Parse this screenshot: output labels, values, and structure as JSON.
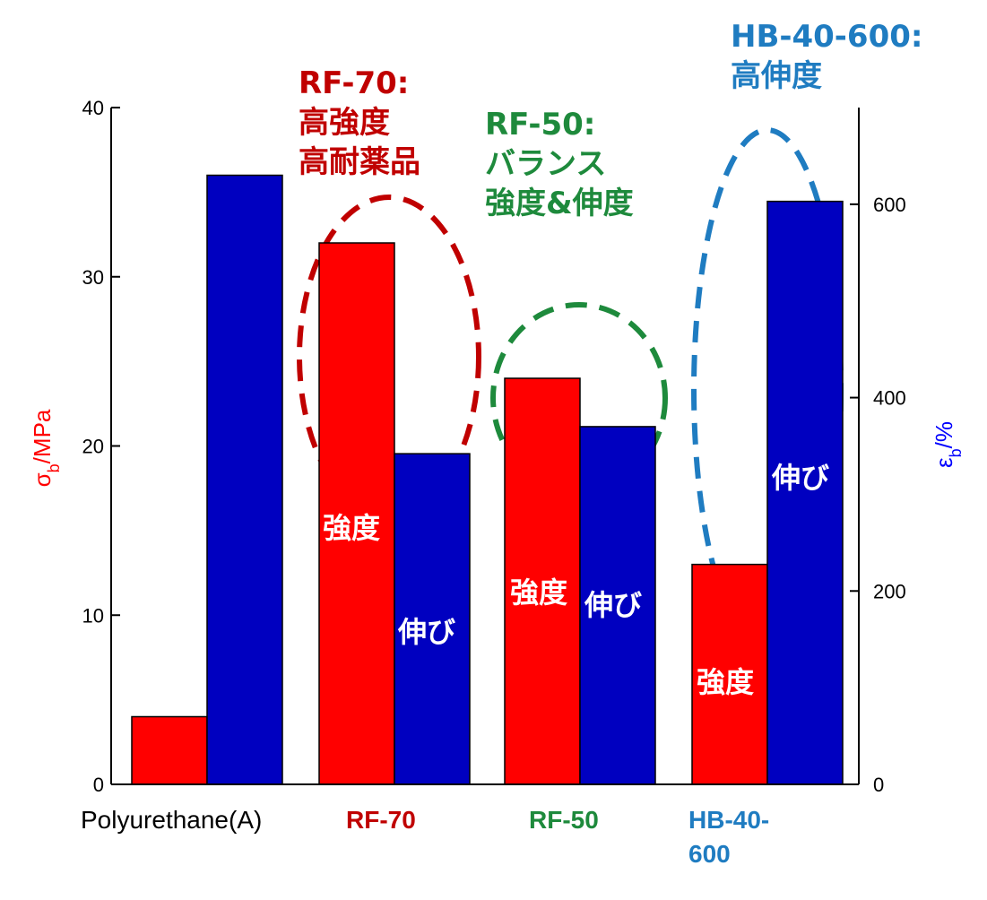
{
  "chart_data": {
    "type": "bar",
    "categories": [
      "Polyurethane(A)",
      "RF-70",
      "RF-50",
      "HB-40-600"
    ],
    "category_colors": [
      "#000000",
      "#c00000",
      "#1e8a3c",
      "#1f7cc1"
    ],
    "series": [
      {
        "name": "強度",
        "axis": "left",
        "color": "#ff0000",
        "values": [
          4,
          32,
          24,
          13
        ]
      },
      {
        "name": "伸び",
        "axis": "right",
        "color": "#0000c0",
        "values": [
          630,
          342,
          370,
          603
        ]
      }
    ],
    "ylabel": "σb/MPa",
    "ylabel_color": "#ff0000",
    "y2label": "εb/%",
    "y2label_color": "#0000ff",
    "ylim": [
      0,
      40
    ],
    "y2lim": [
      0,
      700
    ],
    "yticks": [
      "0",
      "10",
      "20",
      "30",
      "40"
    ],
    "y2ticks": [
      "0",
      "200",
      "400",
      "600"
    ],
    "bar_labels": [
      {
        "text": "強度",
        "category": 1,
        "series": 0
      },
      {
        "text": "伸び",
        "category": 1,
        "series": 1
      },
      {
        "text": "強度",
        "category": 2,
        "series": 0
      },
      {
        "text": "伸び",
        "category": 2,
        "series": 1
      },
      {
        "text": "強度",
        "category": 3,
        "series": 0
      },
      {
        "text": "伸び",
        "category": 3,
        "series": 1
      }
    ],
    "annotations": [
      {
        "lines": [
          "RF-70:",
          "高強度",
          "高耐薬品"
        ],
        "color": "#c00000"
      },
      {
        "lines": [
          "RF-50:",
          "バランス",
          "強度&伸度"
        ],
        "color": "#1e8a3c"
      },
      {
        "lines": [
          "HB-40-600:",
          "高伸度"
        ],
        "color": "#1f7cc1"
      }
    ],
    "grid": false
  }
}
